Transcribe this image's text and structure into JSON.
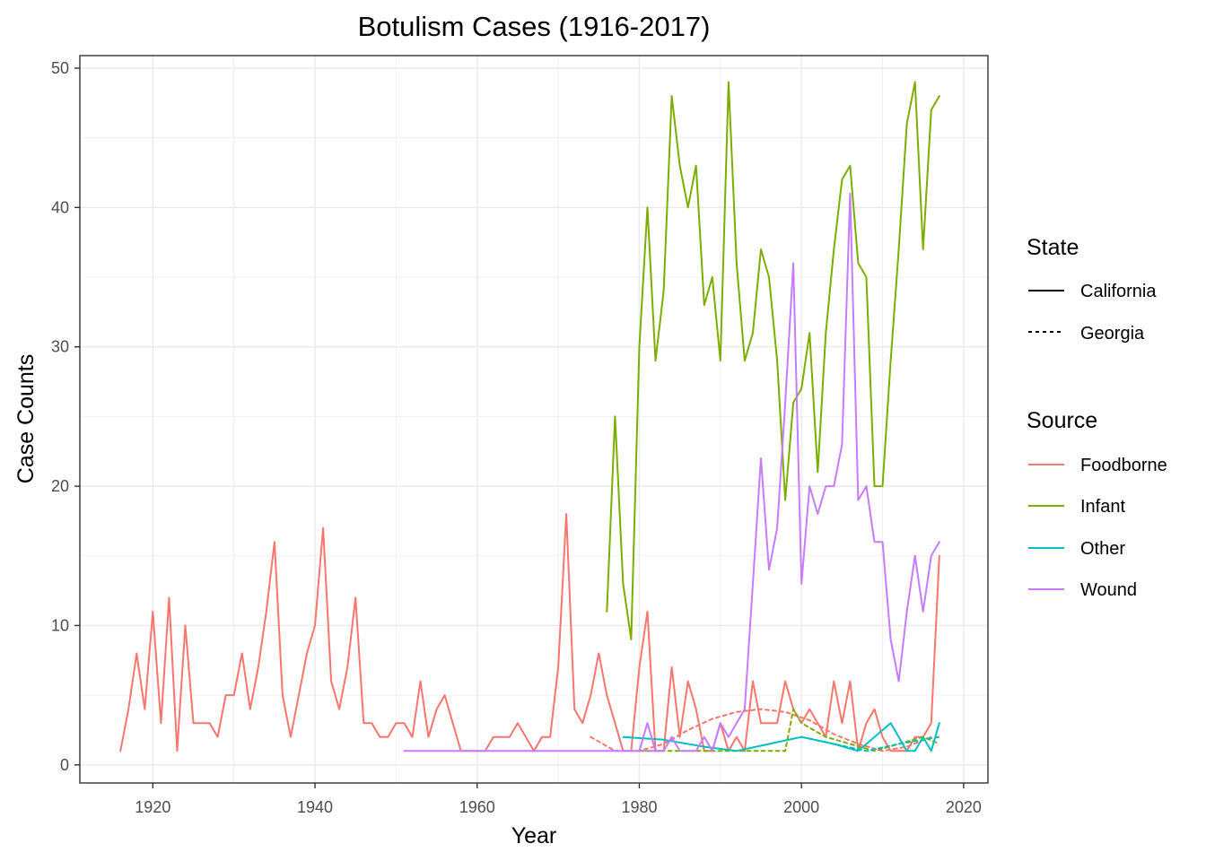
{
  "chart_data": {
    "type": "line",
    "title": "Botulism Cases (1916-2017)",
    "xlabel": "Year",
    "ylabel": "Case Counts",
    "xlim": [
      1911,
      2023
    ],
    "ylim": [
      -1.3,
      50.9
    ],
    "x_ticks": [
      1920,
      1940,
      1960,
      1980,
      2000,
      2020
    ],
    "y_ticks": [
      0,
      10,
      20,
      30,
      40,
      50
    ],
    "grid": true,
    "legend_position": "right",
    "legend": {
      "state_title": "State",
      "states": [
        {
          "label": "California",
          "dash": "solid"
        },
        {
          "label": "Georgia",
          "dash": "dashed"
        }
      ],
      "source_title": "Source",
      "sources": [
        {
          "label": "Foodborne",
          "color": "#F8766D"
        },
        {
          "label": "Infant",
          "color": "#7CAE00"
        },
        {
          "label": "Other",
          "color": "#00BFC4"
        },
        {
          "label": "Wound",
          "color": "#C77CFF"
        }
      ]
    },
    "series": [
      {
        "name": "Foodborne, California",
        "source": "Foodborne",
        "state": "California",
        "color": "#F8766D",
        "dash": "solid",
        "x": [
          1916,
          1917,
          1918,
          1919,
          1920,
          1921,
          1922,
          1923,
          1924,
          1925,
          1926,
          1927,
          1928,
          1929,
          1930,
          1931,
          1932,
          1933,
          1934,
          1935,
          1936,
          1937,
          1938,
          1939,
          1940,
          1941,
          1942,
          1943,
          1944,
          1945,
          1946,
          1947,
          1948,
          1949,
          1950,
          1951,
          1952,
          1953,
          1954,
          1955,
          1956,
          1957,
          1958,
          1959,
          1960,
          1961,
          1962,
          1963,
          1964,
          1965,
          1966,
          1967,
          1968,
          1969,
          1970,
          1971,
          1972,
          1973,
          1974,
          1975,
          1976,
          1977,
          1978,
          1979,
          1980,
          1981,
          1982,
          1983,
          1984,
          1985,
          1986,
          1987,
          1988,
          1989,
          1990,
          1991,
          1992,
          1993,
          1994,
          1995,
          1996,
          1997,
          1998,
          1999,
          2000,
          2001,
          2002,
          2003,
          2004,
          2005,
          2006,
          2007,
          2008,
          2009,
          2010,
          2011,
          2012,
          2013,
          2014,
          2015,
          2016,
          2017
        ],
        "values": [
          1,
          4,
          8,
          4,
          11,
          3,
          12,
          1,
          10,
          3,
          3,
          3,
          2,
          5,
          5,
          8,
          4,
          7,
          11,
          16,
          5,
          2,
          5,
          8,
          10,
          17,
          6,
          4,
          7,
          12,
          3,
          3,
          2,
          2,
          3,
          3,
          2,
          6,
          2,
          4,
          5,
          3,
          1,
          1,
          1,
          1,
          2,
          2,
          2,
          3,
          2,
          1,
          2,
          2,
          7,
          18,
          4,
          3,
          5,
          8,
          5,
          3,
          1,
          1,
          7,
          11,
          1,
          1,
          7,
          2,
          6,
          4,
          1,
          1,
          3,
          1,
          2,
          1,
          6,
          3,
          3,
          3,
          6,
          4,
          3,
          4,
          3,
          2,
          6,
          3,
          6,
          1,
          3,
          4,
          2,
          1,
          1,
          1,
          2,
          2,
          3,
          15
        ]
      },
      {
        "name": "Foodborne, Georgia",
        "source": "Foodborne",
        "state": "Georgia",
        "color": "#F8766D",
        "dash": "dashed",
        "x": [
          1974,
          1977,
          1980,
          1983,
          1986,
          1989,
          1992,
          1995,
          1998,
          2001,
          2004,
          2007,
          2010,
          2013,
          2016
        ],
        "values": [
          2,
          1,
          1,
          1.5,
          2.5,
          3.3,
          3.8,
          4,
          3.8,
          3.2,
          2.2,
          1.5,
          1,
          1.3,
          2
        ]
      },
      {
        "name": "Infant, California",
        "source": "Infant",
        "state": "California",
        "color": "#7CAE00",
        "dash": "solid",
        "x": [
          1976,
          1977,
          1978,
          1979,
          1980,
          1981,
          1982,
          1983,
          1984,
          1985,
          1986,
          1987,
          1988,
          1989,
          1990,
          1991,
          1992,
          1993,
          1994,
          1995,
          1996,
          1997,
          1998,
          1999,
          2000,
          2001,
          2002,
          2003,
          2004,
          2005,
          2006,
          2007,
          2008,
          2009,
          2010,
          2011,
          2012,
          2013,
          2014,
          2015,
          2016,
          2017
        ],
        "values": [
          11,
          25,
          13,
          9,
          30,
          40,
          29,
          34,
          48,
          43,
          40,
          43,
          33,
          35,
          29,
          49,
          36,
          29,
          31,
          37,
          35,
          29,
          19,
          26,
          27,
          31,
          21,
          31,
          37,
          42,
          43,
          36,
          35,
          20,
          20,
          29,
          37,
          46,
          49,
          37,
          47,
          48
        ]
      },
      {
        "name": "Infant, Georgia",
        "source": "Infant",
        "state": "Georgia",
        "color": "#7CAE00",
        "dash": "dashed",
        "x": [
          1980,
          1983,
          1986,
          1989,
          1992,
          1995,
          1998,
          1999,
          2000,
          2003,
          2006,
          2009,
          2012,
          2015,
          2017
        ],
        "values": [
          1,
          1,
          1,
          1,
          1,
          1,
          1,
          4,
          3,
          2,
          1.5,
          1,
          1.5,
          2,
          1.5
        ]
      },
      {
        "name": "Other, California",
        "source": "Other",
        "state": "California",
        "color": "#00BFC4",
        "dash": "solid",
        "x": [
          1978,
          1983,
          1988,
          1992,
          1996,
          2000,
          2004,
          2007,
          2011,
          2012,
          2013,
          2014,
          2015,
          2016,
          2017
        ],
        "values": [
          2,
          1.8,
          1.3,
          1,
          1.5,
          2,
          1.5,
          1,
          3,
          2,
          1,
          1,
          2,
          1,
          3
        ]
      },
      {
        "name": "Other, Georgia",
        "source": "Other",
        "state": "Georgia",
        "color": "#00BFC4",
        "dash": "dashed",
        "x": [
          2000,
          2004,
          2008,
          2012,
          2017
        ],
        "values": [
          2,
          1.5,
          1,
          1.5,
          2
        ]
      },
      {
        "name": "Wound, California",
        "source": "Wound",
        "state": "California",
        "color": "#C77CFF",
        "dash": "solid",
        "x": [
          1951,
          1960,
          1970,
          1979,
          1980,
          1981,
          1982,
          1983,
          1984,
          1985,
          1986,
          1987,
          1988,
          1989,
          1990,
          1991,
          1992,
          1993,
          1994,
          1995,
          1996,
          1997,
          1998,
          1999,
          2000,
          2001,
          2002,
          2003,
          2004,
          2005,
          2006,
          2007,
          2008,
          2009,
          2010,
          2011,
          2012,
          2013,
          2014,
          2015,
          2016,
          2017
        ],
        "values": [
          1,
          1,
          1,
          1,
          1,
          3,
          1,
          1,
          2,
          1,
          1,
          1,
          2,
          1,
          3,
          2,
          3,
          4,
          13,
          22,
          14,
          17,
          26,
          36,
          13,
          20,
          18,
          20,
          20,
          23,
          41,
          19,
          20,
          16,
          16,
          9,
          6,
          11,
          15,
          11,
          15,
          16
        ]
      },
      {
        "name": "Wound, Georgia",
        "source": "Wound",
        "state": "Georgia",
        "color": "#C77CFF",
        "dash": "dashed",
        "x": [
          1977,
          1979,
          1981,
          1983
        ],
        "values": [
          1,
          1,
          1,
          1
        ]
      }
    ]
  }
}
